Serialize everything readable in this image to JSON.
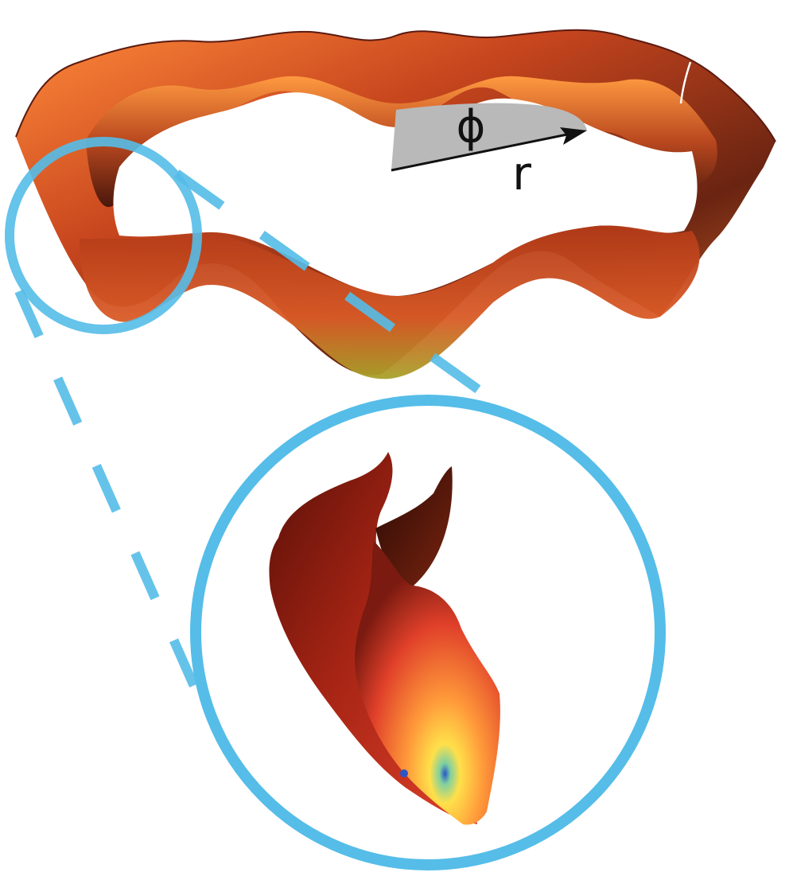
{
  "labels": {
    "angle": "ϕ",
    "radius": "r"
  },
  "colors": {
    "highlight": "#55bde8",
    "surface_dark": "#5a1a10",
    "surface_mid": "#d9542a",
    "surface_light": "#ffb04a",
    "sector_fill": "#b9b9b9",
    "minimum_spot": "#2a56c8"
  }
}
